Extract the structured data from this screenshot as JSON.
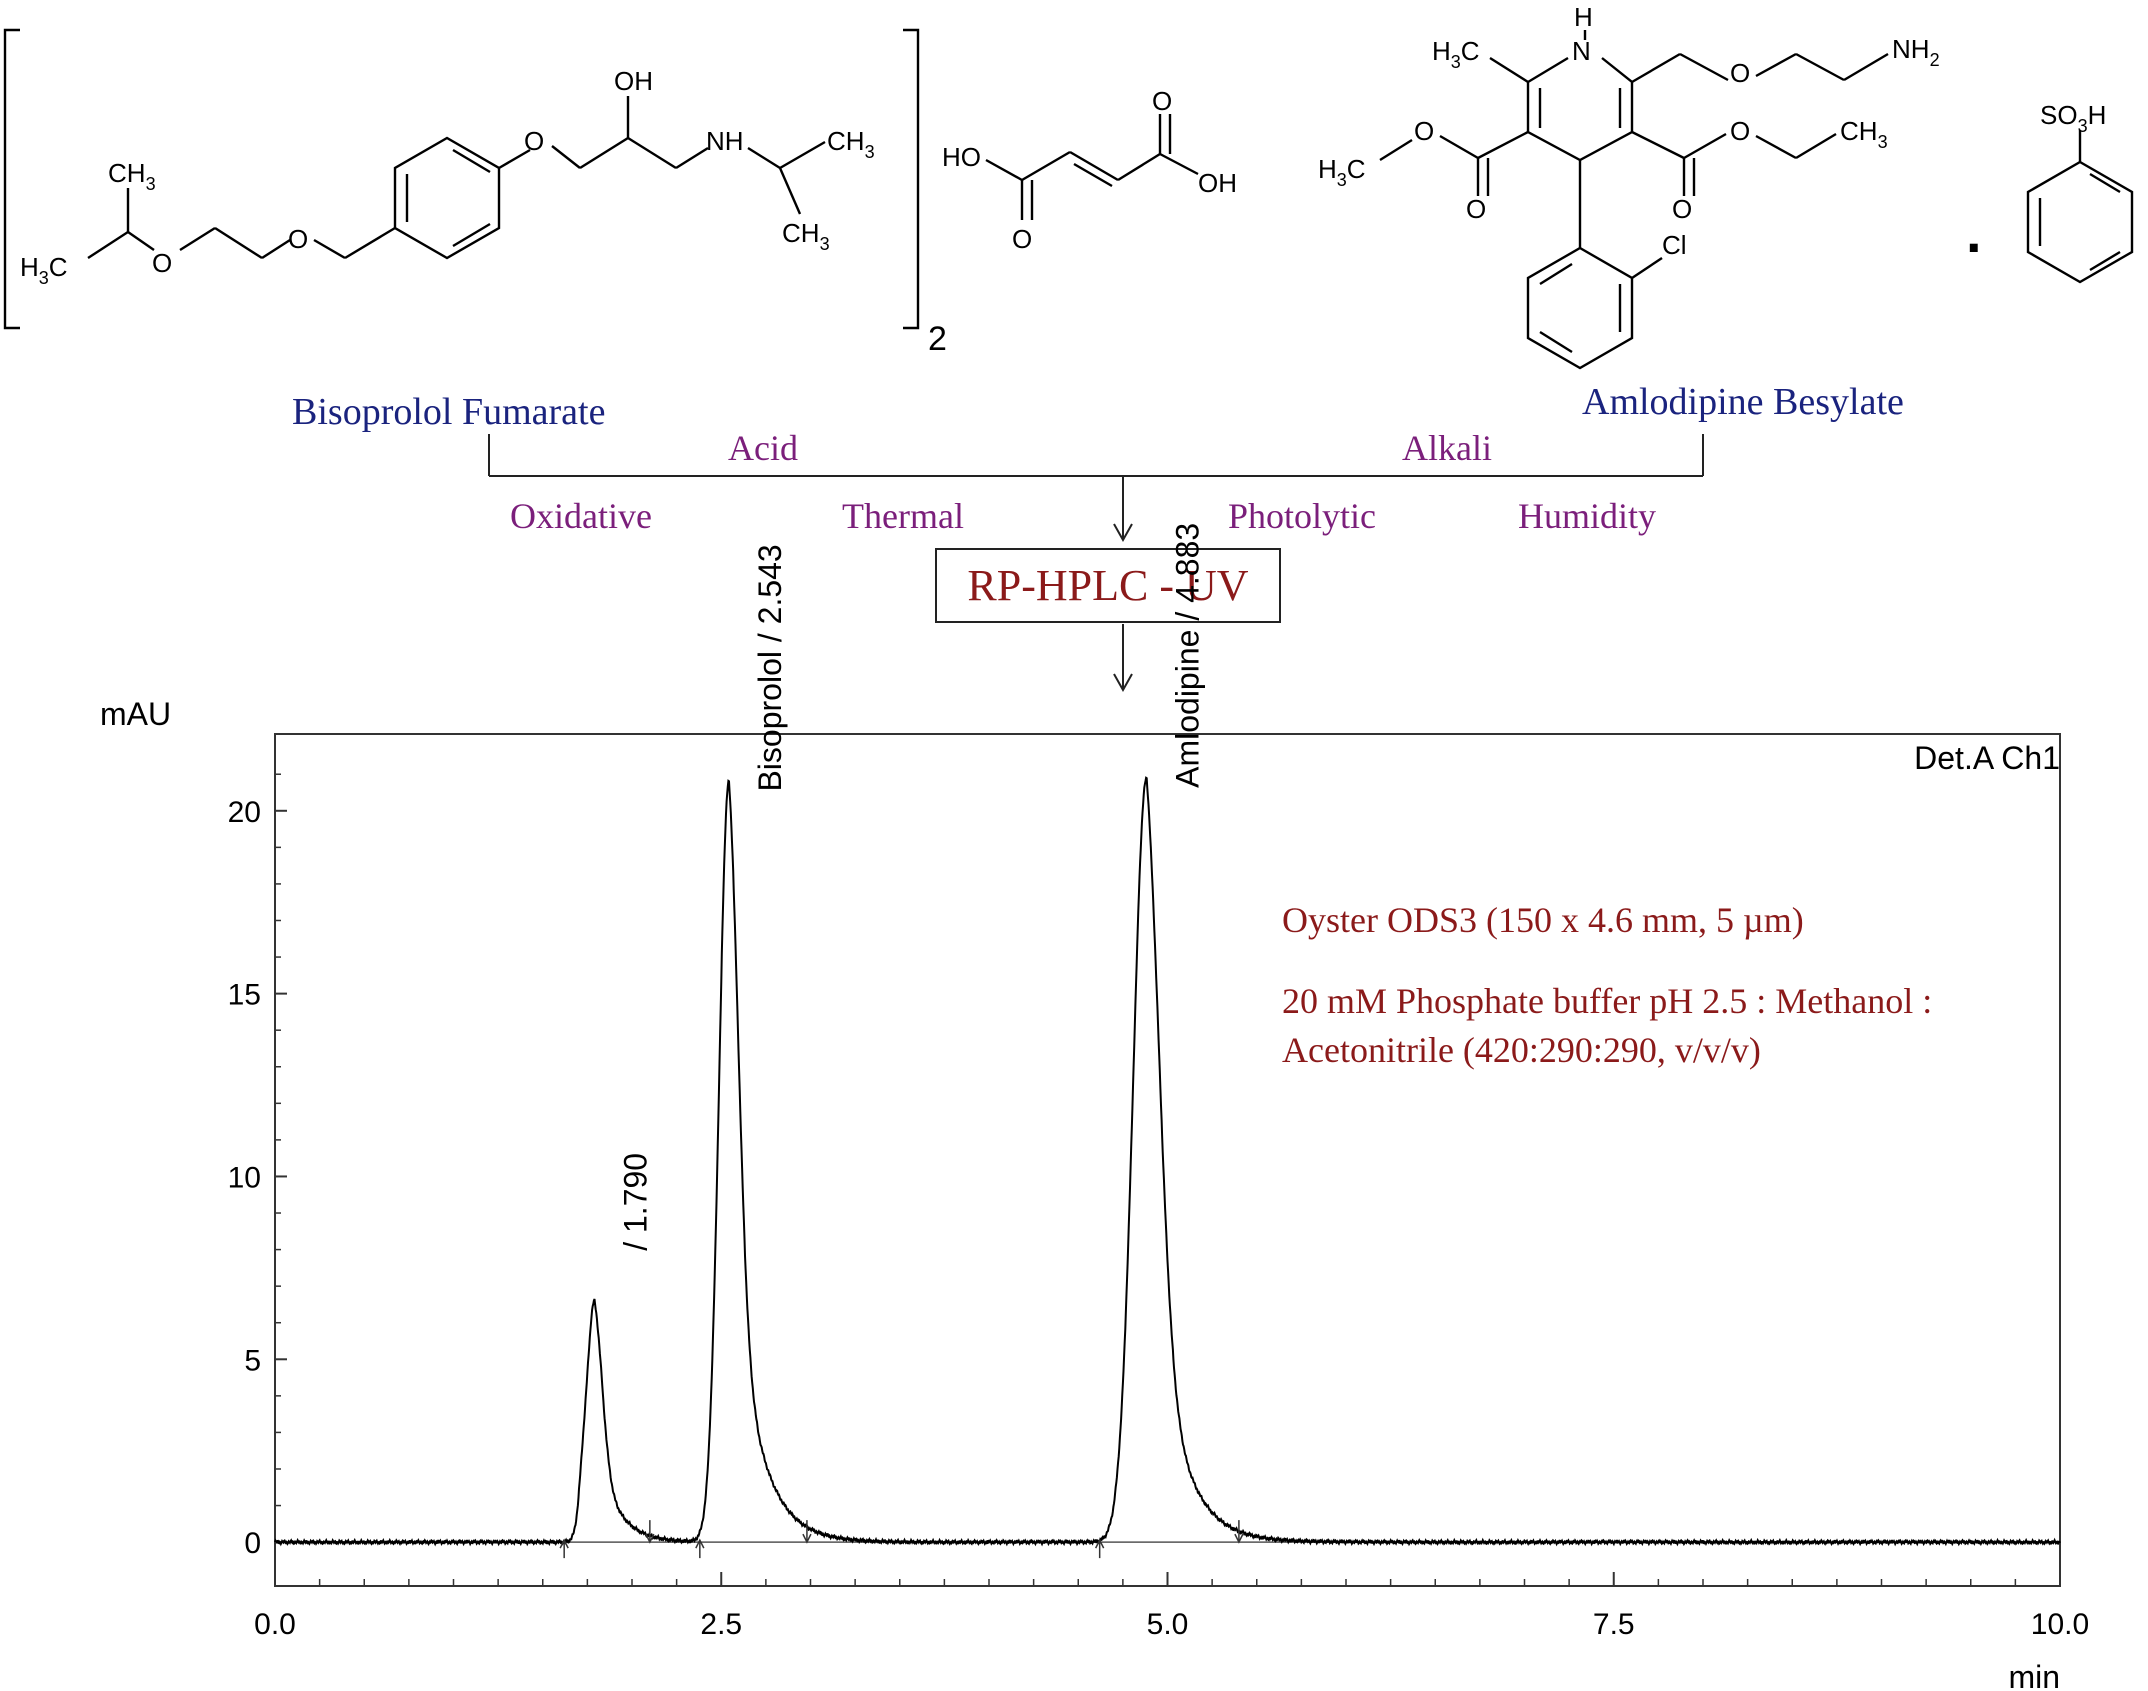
{
  "scheme": {
    "bisoprolol_label": "Bisoprolol Fumarate",
    "amlodipine_label": "Amlodipine Besylate",
    "conditions": [
      "Acid",
      "Alkali",
      "Oxidative",
      "Thermal",
      "Photolytic",
      "Humidity"
    ],
    "method": "RP-HPLC - UV",
    "colors": {
      "compound": "#1a237e",
      "condition": "#7b1f7b",
      "method": "#8b1a1a"
    },
    "bracket_subscript": "2",
    "atoms": {
      "oh": "OH",
      "nh": "NH",
      "ch3": "CH",
      "h3c": "H",
      "c": "C",
      "o": "O",
      "ho": "HO",
      "h": "H",
      "n": "N",
      "nh2": "NH",
      "cl": "Cl",
      "so3h": "SO",
      "sub2": "2",
      "sub3": "3",
      "salt_dot": "."
    }
  },
  "chart_data": {
    "type": "line",
    "ylabel": "mAU",
    "xlabel": "min",
    "detector": "Det.A Ch1",
    "xlim": [
      0,
      10
    ],
    "ylim": [
      -1.2,
      22.1
    ],
    "xticks": [
      0.0,
      2.5,
      5.0,
      7.5,
      10.0
    ],
    "xtick_labels": [
      "0.0",
      "2.5",
      "5.0",
      "7.5",
      "10.0"
    ],
    "yticks": [
      0,
      5,
      10,
      15,
      20
    ],
    "ytick_labels": [
      "0",
      "5",
      "10",
      "15",
      "20"
    ],
    "grid": false,
    "peaks": [
      {
        "label": " / 1.790",
        "rt": 1.79,
        "height": 6.6
      },
      {
        "label": "Bisoprolol / 2.543",
        "rt": 2.543,
        "height": 20.8
      },
      {
        "label": "Amlodipine / 4.883",
        "rt": 4.883,
        "height": 20.9
      }
    ],
    "integration_marks": [
      1.62,
      2.1,
      2.38,
      2.98,
      4.62,
      5.4
    ],
    "annotations": [
      "Oyster ODS3 (150 x 4.6 mm, 5 µm)",
      "20 mM Phosphate buffer pH 2.5 : Methanol :",
      "Acetonitrile (420:290:290, v/v/v)"
    ],
    "colors": {
      "trace": "#000000",
      "annotation": "#8b1a1a"
    }
  }
}
